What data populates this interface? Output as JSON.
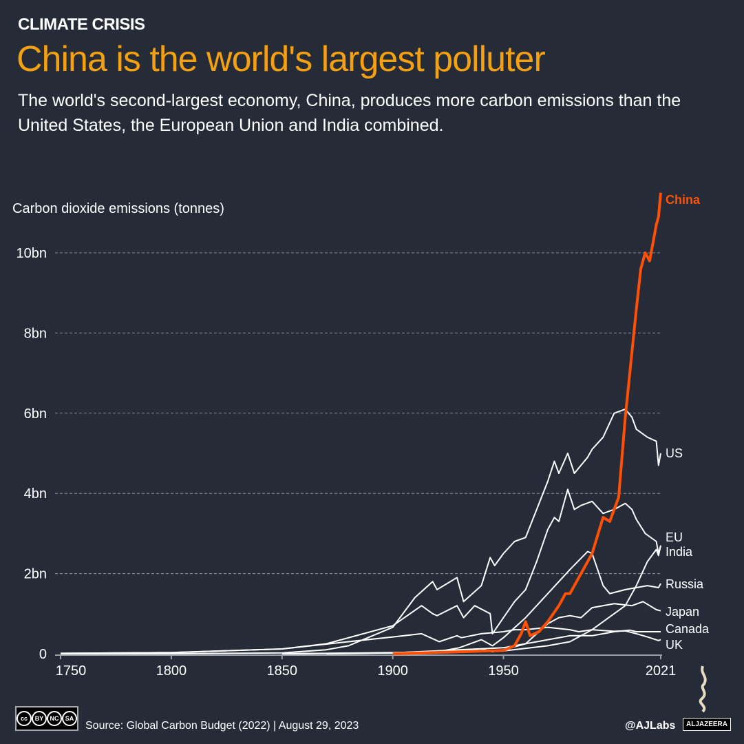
{
  "header": {
    "kicker": "CLIMATE CRISIS",
    "title": "China is the world's largest polluter",
    "subtitle": "The world's second-largest economy, China, produces more carbon emissions than the United States, the European Union and India combined."
  },
  "footer": {
    "source": "Source: Global Carbon Budget (2022)  |  August 29, 2023",
    "handle": "@AJLabs",
    "brand": "ALJAZEERA",
    "license": [
      "BY",
      "NC",
      "SA"
    ]
  },
  "colors": {
    "background": "#252c38",
    "title": "#f5a00f",
    "highlight": "#ff5005",
    "lines": "#ffffff"
  },
  "chart_data": {
    "type": "line",
    "ylabel": "Carbon dioxide emissions (tonnes)",
    "xlim": [
      1750,
      2021
    ],
    "ylim": [
      0,
      11.5
    ],
    "x_ticks": [
      1750,
      1800,
      1850,
      1900,
      1950,
      2021
    ],
    "y_ticks": [
      {
        "v": 0,
        "label": "0"
      },
      {
        "v": 2,
        "label": "2bn"
      },
      {
        "v": 4,
        "label": "4bn"
      },
      {
        "v": 6,
        "label": "6bn"
      },
      {
        "v": 8,
        "label": "8bn"
      },
      {
        "v": 10,
        "label": "10bn"
      }
    ],
    "unit": "billion tonnes",
    "grid": "horizontal dashed",
    "series": [
      {
        "name": "UK",
        "points": [
          [
            1750,
            0.01
          ],
          [
            1800,
            0.03
          ],
          [
            1850,
            0.12
          ],
          [
            1880,
            0.3
          ],
          [
            1900,
            0.42
          ],
          [
            1913,
            0.5
          ],
          [
            1921,
            0.3
          ],
          [
            1929,
            0.45
          ],
          [
            1931,
            0.4
          ],
          [
            1940,
            0.5
          ],
          [
            1950,
            0.55
          ],
          [
            1955,
            0.6
          ],
          [
            1960,
            0.6
          ],
          [
            1970,
            0.66
          ],
          [
            1980,
            0.6
          ],
          [
            1984,
            0.55
          ],
          [
            1990,
            0.6
          ],
          [
            2000,
            0.56
          ],
          [
            2005,
            0.57
          ],
          [
            2010,
            0.5
          ],
          [
            2015,
            0.42
          ],
          [
            2020,
            0.33
          ],
          [
            2021,
            0.35
          ]
        ]
      },
      {
        "name": "Canada",
        "points": [
          [
            1850,
            0
          ],
          [
            1900,
            0.02
          ],
          [
            1950,
            0.15
          ],
          [
            1970,
            0.35
          ],
          [
            1980,
            0.45
          ],
          [
            1990,
            0.45
          ],
          [
            2000,
            0.55
          ],
          [
            2007,
            0.59
          ],
          [
            2010,
            0.55
          ],
          [
            2021,
            0.55
          ]
        ]
      },
      {
        "name": "Japan",
        "points": [
          [
            1870,
            0
          ],
          [
            1900,
            0.02
          ],
          [
            1930,
            0.08
          ],
          [
            1940,
            0.12
          ],
          [
            1945,
            0.05
          ],
          [
            1950,
            0.1
          ],
          [
            1960,
            0.25
          ],
          [
            1970,
            0.75
          ],
          [
            1975,
            0.9
          ],
          [
            1980,
            0.95
          ],
          [
            1985,
            0.9
          ],
          [
            1990,
            1.15
          ],
          [
            2000,
            1.25
          ],
          [
            2008,
            1.2
          ],
          [
            2013,
            1.3
          ],
          [
            2019,
            1.1
          ],
          [
            2021,
            1.07
          ]
        ]
      },
      {
        "name": "Russia",
        "points": [
          [
            1850,
            0
          ],
          [
            1900,
            0.03
          ],
          [
            1920,
            0.05
          ],
          [
            1930,
            0.15
          ],
          [
            1940,
            0.35
          ],
          [
            1945,
            0.2
          ],
          [
            1950,
            0.4
          ],
          [
            1960,
            0.9
          ],
          [
            1970,
            1.5
          ],
          [
            1980,
            2.1
          ],
          [
            1988,
            2.55
          ],
          [
            1990,
            2.5
          ],
          [
            1995,
            1.7
          ],
          [
            1998,
            1.5
          ],
          [
            2005,
            1.6
          ],
          [
            2010,
            1.65
          ],
          [
            2015,
            1.7
          ],
          [
            2020,
            1.65
          ],
          [
            2021,
            1.75
          ]
        ]
      },
      {
        "name": "India",
        "points": [
          [
            1850,
            0
          ],
          [
            1900,
            0.02
          ],
          [
            1950,
            0.07
          ],
          [
            1970,
            0.2
          ],
          [
            1980,
            0.3
          ],
          [
            1990,
            0.6
          ],
          [
            2000,
            1.0
          ],
          [
            2005,
            1.2
          ],
          [
            2010,
            1.7
          ],
          [
            2015,
            2.3
          ],
          [
            2019,
            2.6
          ],
          [
            2020,
            2.45
          ],
          [
            2021,
            2.7
          ]
        ]
      },
      {
        "name": "EU",
        "points": [
          [
            1750,
            0.01
          ],
          [
            1800,
            0.03
          ],
          [
            1850,
            0.12
          ],
          [
            1870,
            0.25
          ],
          [
            1900,
            0.7
          ],
          [
            1913,
            1.2
          ],
          [
            1918,
            1.0
          ],
          [
            1920,
            0.95
          ],
          [
            1929,
            1.2
          ],
          [
            1932,
            0.9
          ],
          [
            1937,
            1.2
          ],
          [
            1944,
            1.0
          ],
          [
            1945,
            0.5
          ],
          [
            1950,
            0.9
          ],
          [
            1955,
            1.3
          ],
          [
            1960,
            1.6
          ],
          [
            1965,
            2.3
          ],
          [
            1970,
            3.1
          ],
          [
            1973,
            3.4
          ],
          [
            1975,
            3.3
          ],
          [
            1979,
            4.1
          ],
          [
            1982,
            3.6
          ],
          [
            1985,
            3.7
          ],
          [
            1990,
            3.8
          ],
          [
            1995,
            3.5
          ],
          [
            2000,
            3.6
          ],
          [
            2005,
            3.75
          ],
          [
            2008,
            3.6
          ],
          [
            2010,
            3.35
          ],
          [
            2014,
            3.0
          ],
          [
            2019,
            2.8
          ],
          [
            2020,
            2.5
          ],
          [
            2021,
            2.7
          ]
        ]
      },
      {
        "name": "US",
        "points": [
          [
            1750,
            0
          ],
          [
            1800,
            0.001
          ],
          [
            1850,
            0.02
          ],
          [
            1870,
            0.1
          ],
          [
            1880,
            0.2
          ],
          [
            1900,
            0.66
          ],
          [
            1910,
            1.4
          ],
          [
            1918,
            1.8
          ],
          [
            1920,
            1.6
          ],
          [
            1929,
            1.9
          ],
          [
            1932,
            1.3
          ],
          [
            1940,
            1.7
          ],
          [
            1944,
            2.4
          ],
          [
            1946,
            2.2
          ],
          [
            1950,
            2.5
          ],
          [
            1955,
            2.8
          ],
          [
            1960,
            2.9
          ],
          [
            1965,
            3.6
          ],
          [
            1970,
            4.3
          ],
          [
            1973,
            4.8
          ],
          [
            1975,
            4.5
          ],
          [
            1979,
            5.0
          ],
          [
            1982,
            4.5
          ],
          [
            1988,
            4.9
          ],
          [
            1990,
            5.1
          ],
          [
            1995,
            5.4
          ],
          [
            2000,
            6.0
          ],
          [
            2005,
            6.1
          ],
          [
            2008,
            5.9
          ],
          [
            2010,
            5.6
          ],
          [
            2015,
            5.4
          ],
          [
            2019,
            5.3
          ],
          [
            2020,
            4.7
          ],
          [
            2021,
            5.0
          ]
        ]
      },
      {
        "name": "China",
        "highlight": true,
        "points": [
          [
            1900,
            0
          ],
          [
            1950,
            0.08
          ],
          [
            1955,
            0.2
          ],
          [
            1958,
            0.5
          ],
          [
            1960,
            0.8
          ],
          [
            1962,
            0.45
          ],
          [
            1966,
            0.55
          ],
          [
            1970,
            0.8
          ],
          [
            1975,
            1.2
          ],
          [
            1978,
            1.5
          ],
          [
            1980,
            1.5
          ],
          [
            1985,
            2.0
          ],
          [
            1990,
            2.5
          ],
          [
            1995,
            3.4
          ],
          [
            1998,
            3.3
          ],
          [
            2000,
            3.6
          ],
          [
            2002,
            3.9
          ],
          [
            2005,
            5.9
          ],
          [
            2010,
            8.6
          ],
          [
            2012,
            9.6
          ],
          [
            2014,
            10.0
          ],
          [
            2016,
            9.8
          ],
          [
            2019,
            10.7
          ],
          [
            2020,
            10.9
          ],
          [
            2021,
            11.5
          ]
        ]
      }
    ]
  }
}
